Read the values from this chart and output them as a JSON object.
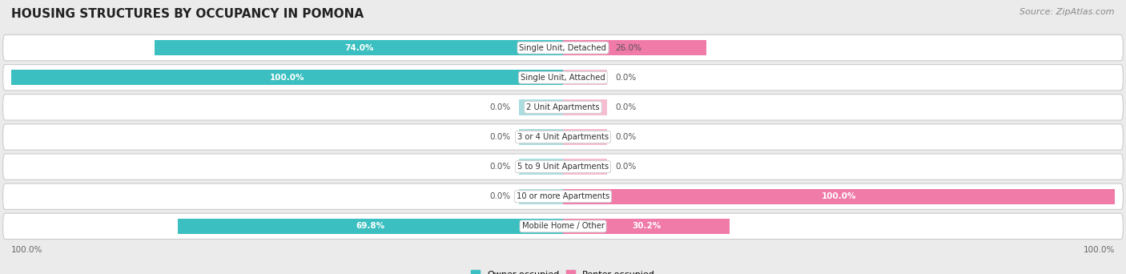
{
  "title": "HOUSING STRUCTURES BY OCCUPANCY IN POMONA",
  "source": "Source: ZipAtlas.com",
  "categories": [
    "Single Unit, Detached",
    "Single Unit, Attached",
    "2 Unit Apartments",
    "3 or 4 Unit Apartments",
    "5 to 9 Unit Apartments",
    "10 or more Apartments",
    "Mobile Home / Other"
  ],
  "owner_values": [
    74.0,
    100.0,
    0.0,
    0.0,
    0.0,
    0.0,
    69.8
  ],
  "renter_values": [
    26.0,
    0.0,
    0.0,
    0.0,
    0.0,
    100.0,
    30.2
  ],
  "owner_color": "#3bbfc0",
  "renter_color": "#f07aa8",
  "owner_color_light": "#aadde0",
  "renter_color_light": "#f7bcd1",
  "row_bg_color": "#ffffff",
  "outer_bg_color": "#ebebeb",
  "title_fontsize": 11,
  "source_fontsize": 8,
  "bar_height": 0.52,
  "stub_value": 8,
  "axis_label": "100.0%"
}
